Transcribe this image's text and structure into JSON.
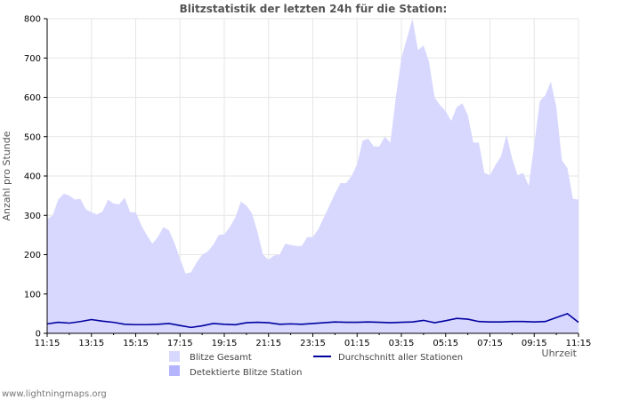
{
  "footer": "www.lightningmaps.org",
  "chart_data": {
    "type": "area",
    "title": "Blitzstatistik der letzten 24h für die Station:",
    "ylabel": "Anzahl pro Stunde",
    "xlabel": "Uhrzeit",
    "ylim": [
      0,
      800
    ],
    "y_ticks": [
      "0",
      "100",
      "200",
      "300",
      "400",
      "500",
      "600",
      "700",
      "800"
    ],
    "x_tick_labels": [
      "11:15",
      "13:15",
      "15:15",
      "17:15",
      "19:15",
      "21:15",
      "23:15",
      "01:15",
      "03:15",
      "05:15",
      "07:15",
      "09:15",
      "11:15"
    ],
    "x_hours": [
      0,
      24
    ],
    "grid": true,
    "legend_position": "bottom",
    "colors": {
      "total": "#d8d8ff",
      "detected": "#b4b4ff",
      "average": "#0000a0",
      "grid": "#e6e6e6"
    },
    "series": [
      {
        "name": "Blitze Gesamt",
        "style": "area",
        "color": "#d8d8ff",
        "x": [
          0,
          0.25,
          0.5,
          0.75,
          1,
          1.25,
          1.5,
          1.75,
          2,
          2.25,
          2.5,
          2.75,
          3,
          3.25,
          3.5,
          3.75,
          4,
          4.25,
          4.5,
          4.75,
          5,
          5.25,
          5.5,
          5.75,
          6,
          6.25,
          6.5,
          6.75,
          7,
          7.25,
          7.5,
          7.75,
          8,
          8.25,
          8.5,
          8.75,
          9,
          9.25,
          9.5,
          9.75,
          10,
          10.25,
          10.5,
          10.75,
          11,
          11.25,
          11.5,
          11.75,
          12,
          12.25,
          12.5,
          12.75,
          13,
          13.25,
          13.5,
          13.75,
          14,
          14.25,
          14.5,
          14.75,
          15,
          15.25,
          15.5,
          15.75,
          16,
          16.25,
          16.5,
          16.75,
          17,
          17.25,
          17.5,
          17.75,
          18,
          18.25,
          18.5,
          18.75,
          19,
          19.25,
          19.5,
          19.75,
          20,
          20.25,
          20.5,
          20.75,
          21,
          21.25,
          21.5,
          21.75,
          22,
          22.25,
          22.5,
          22.75,
          23,
          23.25,
          23.5,
          23.75,
          24
        ],
        "values": [
          290,
          300,
          340,
          355,
          350,
          340,
          342,
          315,
          308,
          302,
          310,
          340,
          330,
          328,
          345,
          308,
          308,
          275,
          250,
          228,
          245,
          270,
          262,
          230,
          190,
          152,
          155,
          180,
          200,
          208,
          225,
          250,
          252,
          270,
          295,
          335,
          325,
          305,
          258,
          200,
          187,
          198,
          200,
          228,
          225,
          222,
          222,
          245,
          245,
          265,
          295,
          325,
          355,
          382,
          382,
          400,
          430,
          490,
          495,
          475,
          475,
          500,
          485,
          600,
          700,
          750,
          800,
          720,
          732,
          690,
          600,
          580,
          565,
          540,
          575,
          585,
          555,
          485,
          485,
          408,
          402,
          428,
          450,
          505,
          445,
          402,
          408,
          375,
          480,
          590,
          605,
          640,
          575,
          440,
          420,
          342,
          340
        ]
      },
      {
        "name": "Detektierte Blitze Station",
        "style": "area",
        "color": "#b4b4ff",
        "values": []
      },
      {
        "name": "Durchschnitt aller Stationen",
        "style": "line",
        "color": "#0000a0",
        "x": [
          0,
          0.5,
          1,
          1.5,
          2,
          2.5,
          3,
          3.5,
          4,
          4.5,
          5,
          5.5,
          6,
          6.5,
          7,
          7.5,
          8,
          8.5,
          9,
          9.5,
          10,
          10.5,
          11,
          11.5,
          12,
          12.5,
          13,
          13.5,
          14,
          14.5,
          15,
          15.5,
          16,
          16.5,
          17,
          17.5,
          18,
          18.5,
          19,
          19.5,
          20,
          20.5,
          21,
          21.5,
          22,
          22.5,
          23,
          23.5,
          24
        ],
        "values": [
          24,
          28,
          26,
          30,
          35,
          31,
          28,
          23,
          22,
          22,
          23,
          25,
          20,
          15,
          19,
          25,
          23,
          22,
          27,
          28,
          27,
          23,
          24,
          23,
          25,
          27,
          29,
          28,
          28,
          29,
          28,
          27,
          28,
          29,
          33,
          27,
          32,
          38,
          36,
          30,
          29,
          29,
          30,
          30,
          29,
          30,
          40,
          50,
          28
        ]
      }
    ]
  }
}
